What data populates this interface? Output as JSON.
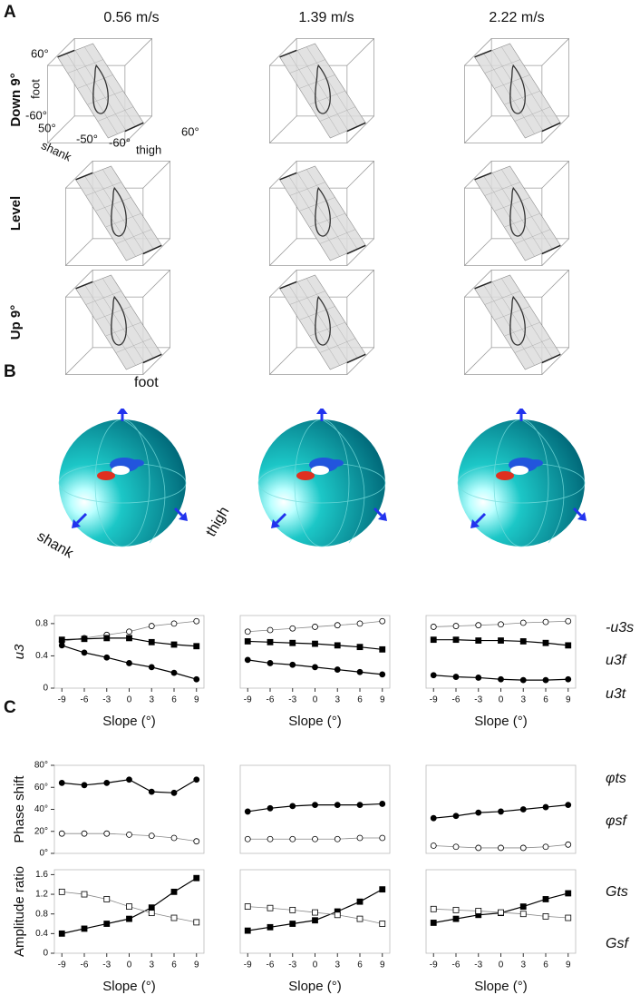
{
  "panel_labels": [
    "A",
    "B",
    "C"
  ],
  "speeds": [
    "0.56 m/s",
    "1.39 m/s",
    "2.22 m/s"
  ],
  "conditions": [
    "Down 9°",
    "Level",
    "Up 9°"
  ],
  "axes_3d": {
    "foot_max": "60°",
    "foot": "foot",
    "foot_min": "-60°",
    "shank_max": "50°",
    "shank": "shank",
    "shank_min": "-50°",
    "thigh_min": "-60°",
    "thigh": "thigh",
    "thigh_max": "60°"
  },
  "sphere_labels": {
    "foot": "foot",
    "shank": "shank",
    "thigh": "thigh"
  },
  "chart_data": [
    {
      "type": "line",
      "ylabel": "u3",
      "xlabel": "Slope (°)",
      "x": [
        -9,
        -6,
        -3,
        0,
        3,
        6,
        9
      ],
      "xlim": [
        -10,
        10
      ],
      "xticks": [
        -9,
        -6,
        -3,
        0,
        3,
        6,
        9
      ],
      "ylim": [
        0,
        0.9
      ],
      "yticks": [
        0,
        0.4,
        0.8
      ],
      "series": [
        {
          "color": "#000000",
          "marker": "circle",
          "filled": false,
          "values": [
            0.58,
            0.62,
            0.66,
            0.7,
            0.77,
            0.8,
            0.83
          ]
        },
        {
          "color": "#000000",
          "marker": "square",
          "filled": true,
          "values": [
            0.6,
            0.61,
            0.62,
            0.62,
            0.57,
            0.54,
            0.52
          ]
        },
        {
          "color": "#000000",
          "marker": "circle",
          "filled": true,
          "values": [
            0.53,
            0.44,
            0.38,
            0.31,
            0.26,
            0.19,
            0.11
          ]
        }
      ]
    },
    {
      "type": "line",
      "xlabel": "Slope (°)",
      "x": [
        -9,
        -6,
        -3,
        0,
        3,
        6,
        9
      ],
      "xlim": [
        -10,
        10
      ],
      "xticks": [
        -9,
        -6,
        -3,
        0,
        3,
        6,
        9
      ],
      "ylim": [
        0,
        0.9
      ],
      "series": [
        {
          "color": "#000000",
          "marker": "circle",
          "filled": false,
          "values": [
            0.7,
            0.72,
            0.74,
            0.76,
            0.78,
            0.8,
            0.83
          ]
        },
        {
          "color": "#000000",
          "marker": "square",
          "filled": true,
          "values": [
            0.58,
            0.57,
            0.56,
            0.55,
            0.53,
            0.51,
            0.48
          ]
        },
        {
          "color": "#000000",
          "marker": "circle",
          "filled": true,
          "values": [
            0.35,
            0.31,
            0.29,
            0.26,
            0.23,
            0.2,
            0.17
          ]
        }
      ]
    },
    {
      "type": "line",
      "xlabel": "Slope (°)",
      "x": [
        -9,
        -6,
        -3,
        0,
        3,
        6,
        9
      ],
      "xlim": [
        -10,
        10
      ],
      "xticks": [
        -9,
        -6,
        -3,
        0,
        3,
        6,
        9
      ],
      "ylim": [
        0,
        0.9
      ],
      "series": [
        {
          "name": "-u3s",
          "color": "#000000",
          "marker": "circle",
          "filled": false,
          "values": [
            0.76,
            0.77,
            0.78,
            0.79,
            0.81,
            0.82,
            0.83
          ]
        },
        {
          "name": "u3f",
          "color": "#000000",
          "marker": "square",
          "filled": true,
          "values": [
            0.6,
            0.6,
            0.59,
            0.59,
            0.58,
            0.56,
            0.53
          ]
        },
        {
          "name": "u3t",
          "color": "#000000",
          "marker": "circle",
          "filled": true,
          "values": [
            0.16,
            0.14,
            0.13,
            0.11,
            0.1,
            0.1,
            0.11
          ]
        }
      ]
    },
    {
      "type": "line",
      "ylabel": "Phase shift",
      "x": [
        -9,
        -6,
        -3,
        0,
        3,
        6,
        9
      ],
      "xlim": [
        -10,
        10
      ],
      "ylim": [
        0,
        80
      ],
      "yticks": [
        {
          "value": 0,
          "label": "0°"
        },
        {
          "value": 20,
          "label": "20°"
        },
        {
          "value": 40,
          "label": "40°"
        },
        {
          "value": 60,
          "label": "60°"
        },
        {
          "value": 80,
          "label": "80°"
        }
      ],
      "series": [
        {
          "color": "#000000",
          "marker": "circle",
          "filled": true,
          "values": [
            64,
            62,
            64,
            67,
            56,
            55,
            67
          ]
        },
        {
          "color": "#000000",
          "marker": "circle",
          "filled": false,
          "values": [
            18,
            18,
            18,
            17,
            16,
            14,
            11
          ]
        }
      ]
    },
    {
      "type": "line",
      "x": [
        -9,
        -6,
        -3,
        0,
        3,
        6,
        9
      ],
      "xlim": [
        -10,
        10
      ],
      "ylim": [
        0,
        80
      ],
      "series": [
        {
          "color": "#000000",
          "marker": "circle",
          "filled": true,
          "values": [
            38,
            41,
            43,
            44,
            44,
            44,
            45
          ]
        },
        {
          "color": "#000000",
          "marker": "circle",
          "filled": false,
          "values": [
            13,
            13,
            13,
            13,
            13,
            14,
            14
          ]
        }
      ]
    },
    {
      "type": "line",
      "x": [
        -9,
        -6,
        -3,
        0,
        3,
        6,
        9
      ],
      "xlim": [
        -10,
        10
      ],
      "ylim": [
        0,
        80
      ],
      "series": [
        {
          "name": "φts",
          "color": "#000000",
          "marker": "circle",
          "filled": true,
          "values": [
            32,
            34,
            37,
            38,
            40,
            42,
            44
          ]
        },
        {
          "name": "φsf",
          "color": "#000000",
          "marker": "circle",
          "filled": false,
          "values": [
            7,
            6,
            5,
            5,
            5,
            6,
            8
          ]
        }
      ]
    },
    {
      "type": "line",
      "ylabel": "Amplitude ratio",
      "xlabel": "Slope (°)",
      "x": [
        -9,
        -6,
        -3,
        0,
        3,
        6,
        9
      ],
      "xlim": [
        -10,
        10
      ],
      "xticks": [
        -9,
        -6,
        -3,
        0,
        3,
        6,
        9
      ],
      "ylim": [
        0,
        1.7
      ],
      "yticks": [
        0,
        0.4,
        0.8,
        1.2,
        1.6
      ],
      "series": [
        {
          "color": "#000000",
          "marker": "square",
          "filled": true,
          "values": [
            0.4,
            0.5,
            0.6,
            0.7,
            0.93,
            1.25,
            1.53
          ]
        },
        {
          "color": "#000000",
          "marker": "square",
          "filled": false,
          "values": [
            1.25,
            1.2,
            1.1,
            0.95,
            0.82,
            0.72,
            0.63
          ]
        }
      ]
    },
    {
      "type": "line",
      "xlabel": "Slope (°)",
      "x": [
        -9,
        -6,
        -3,
        0,
        3,
        6,
        9
      ],
      "xlim": [
        -10,
        10
      ],
      "xticks": [
        -9,
        -6,
        -3,
        0,
        3,
        6,
        9
      ],
      "ylim": [
        0,
        1.7
      ],
      "series": [
        {
          "color": "#000000",
          "marker": "square",
          "filled": true,
          "values": [
            0.46,
            0.53,
            0.6,
            0.67,
            0.85,
            1.05,
            1.3
          ]
        },
        {
          "color": "#000000",
          "marker": "square",
          "filled": false,
          "values": [
            0.95,
            0.92,
            0.88,
            0.83,
            0.78,
            0.7,
            0.6
          ]
        }
      ]
    },
    {
      "type": "line",
      "xlabel": "Slope (°)",
      "x": [
        -9,
        -6,
        -3,
        0,
        3,
        6,
        9
      ],
      "xlim": [
        -10,
        10
      ],
      "xticks": [
        -9,
        -6,
        -3,
        0,
        3,
        6,
        9
      ],
      "ylim": [
        0,
        1.7
      ],
      "series": [
        {
          "name": "Gts",
          "color": "#000000",
          "marker": "square",
          "filled": true,
          "values": [
            0.62,
            0.7,
            0.78,
            0.82,
            0.95,
            1.1,
            1.22
          ]
        },
        {
          "name": "Gsf",
          "color": "#000000",
          "marker": "square",
          "filled": false,
          "values": [
            0.9,
            0.88,
            0.86,
            0.83,
            0.8,
            0.75,
            0.72
          ]
        }
      ]
    }
  ]
}
